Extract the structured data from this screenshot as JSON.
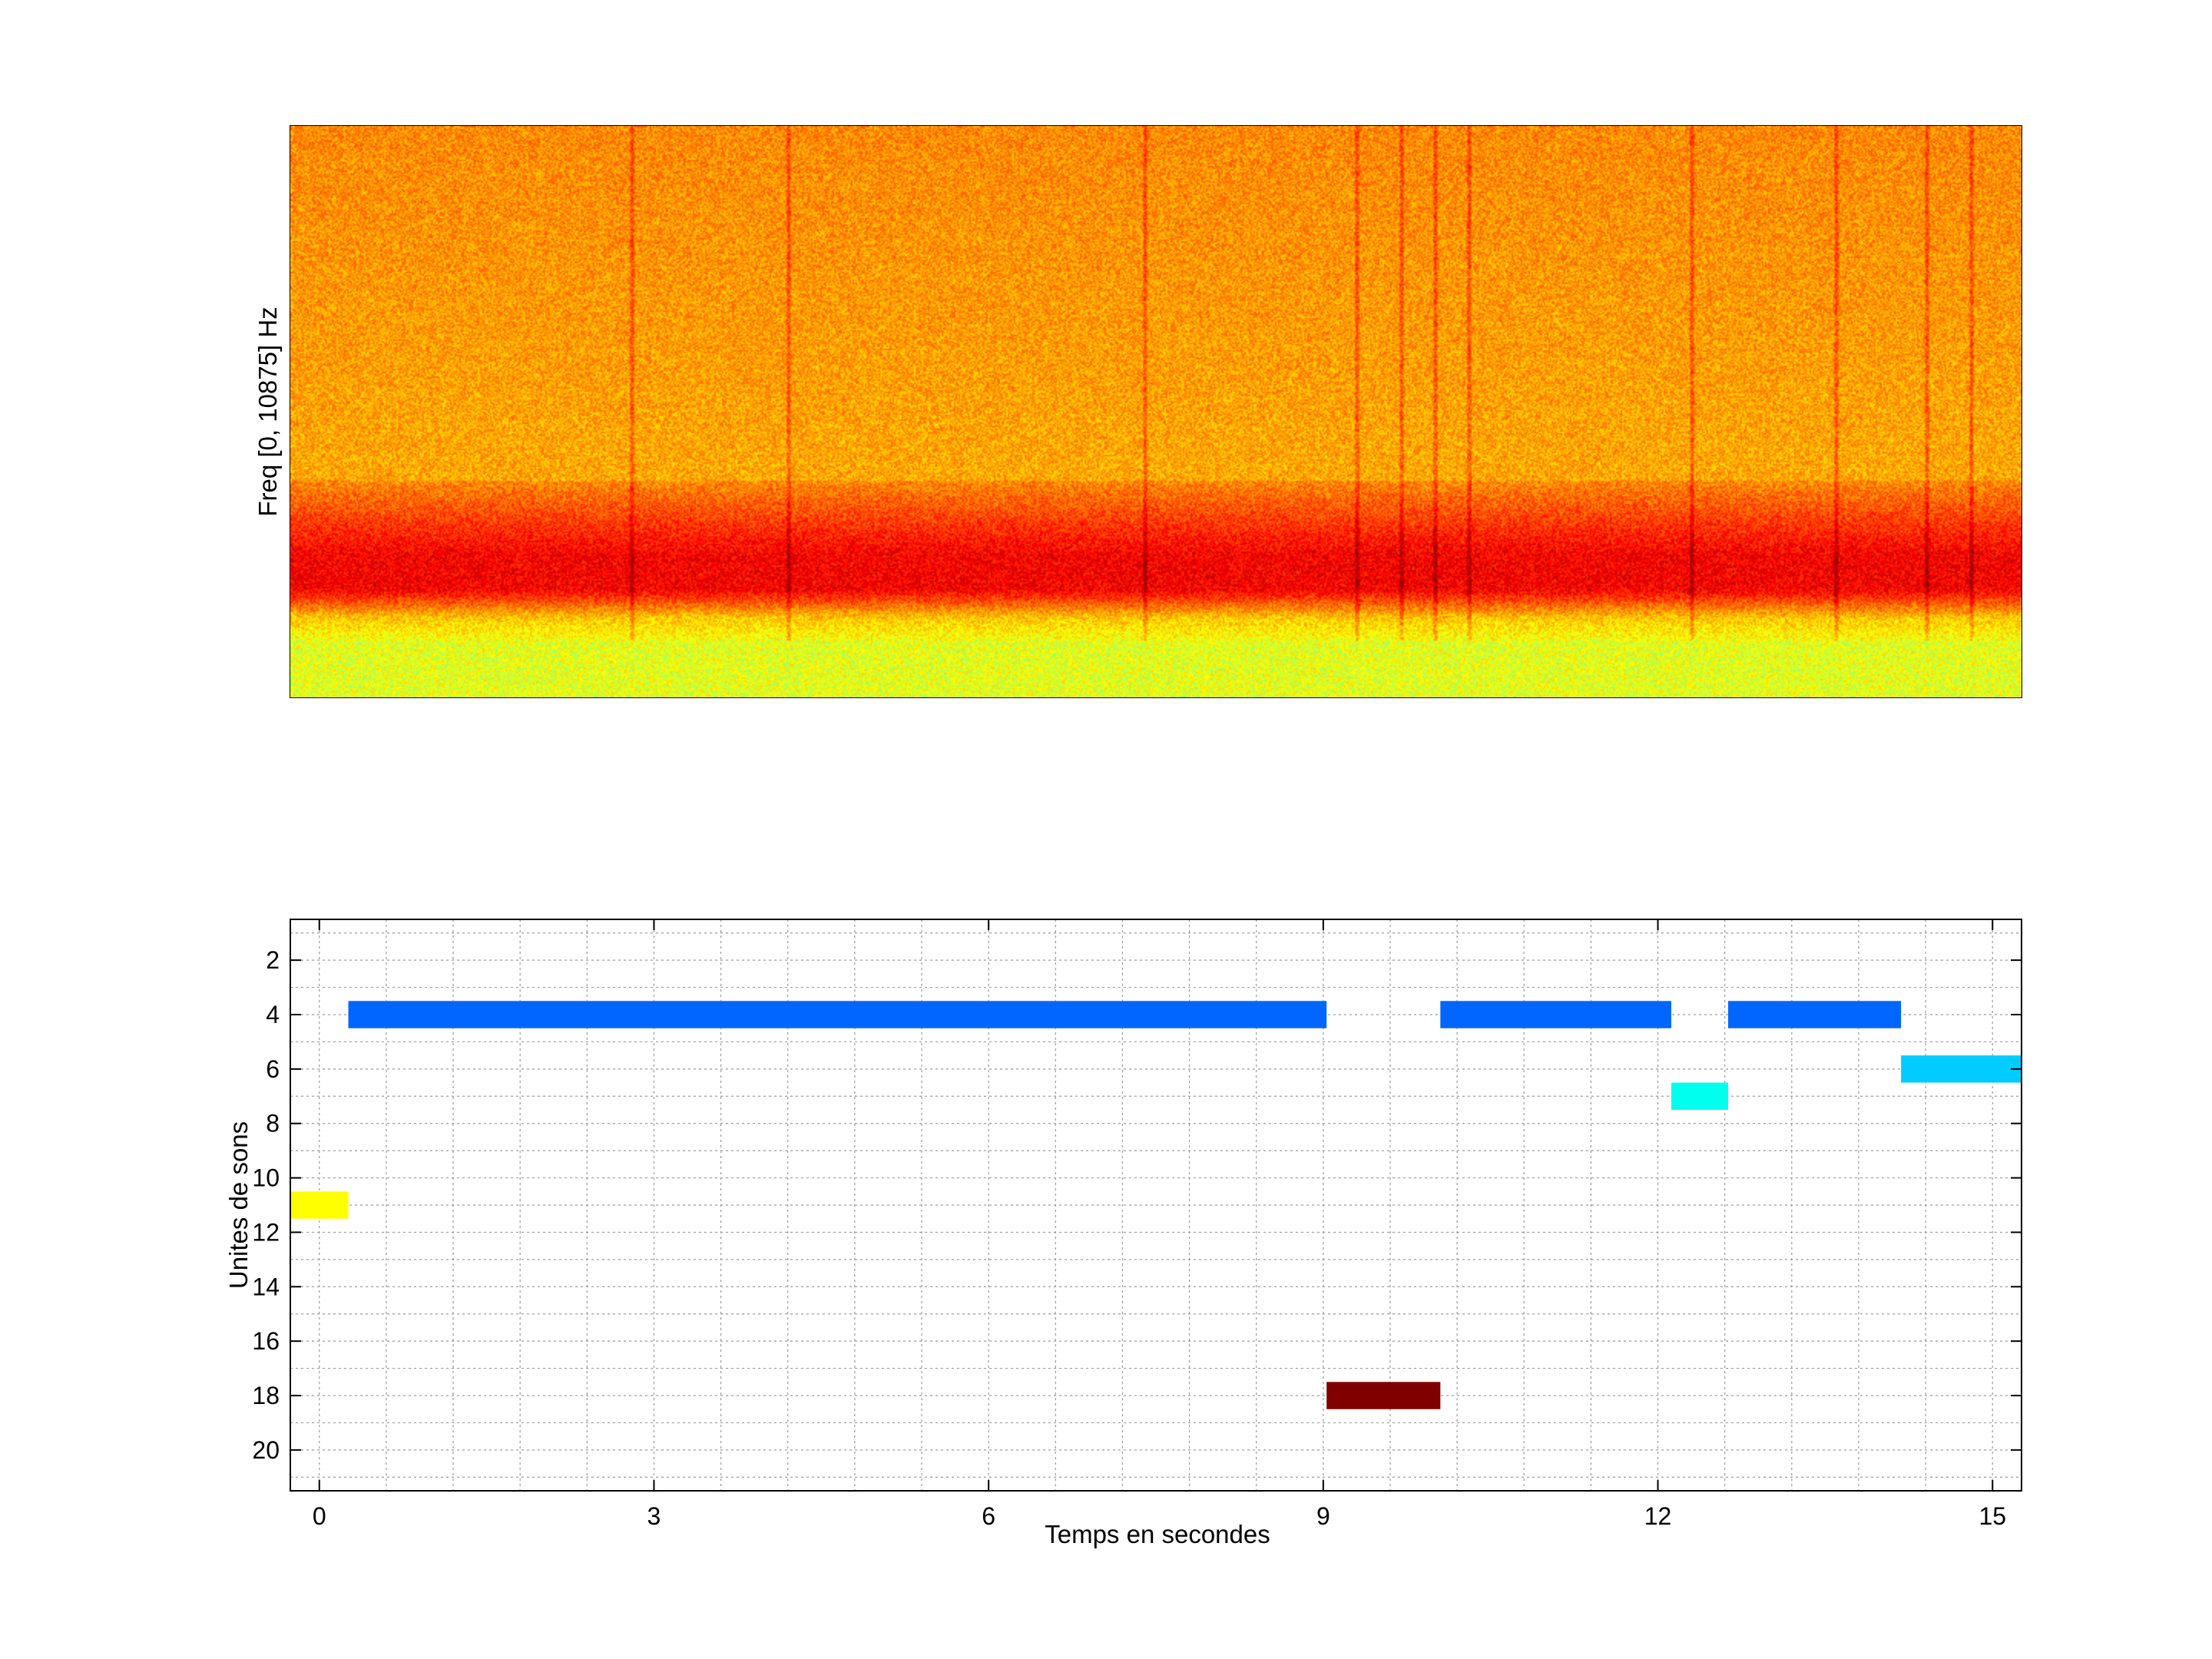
{
  "chart_data": [
    {
      "type": "heatmap",
      "title": "",
      "xlabel": "",
      "ylabel": "Freq [0, 10875] Hz",
      "colormap": "jet",
      "grid": false,
      "xticks": [
        0,
        3,
        6,
        9,
        12,
        15
      ],
      "xlim": [
        -0.26,
        15.26
      ],
      "bands": [
        {
          "name": "low-frequency energy",
          "color": "#f1ff1a"
        },
        {
          "name": "dominant band",
          "color": "#e62200"
        },
        {
          "name": "upper spectrum",
          "color": "#ff9b00"
        }
      ],
      "transient_times": [
        2.8,
        4.2,
        7.4,
        9.3,
        9.7,
        10.0,
        10.3,
        12.3,
        13.6,
        14.4,
        14.8
      ]
    },
    {
      "type": "bar",
      "orientation": "horizontal-segments",
      "title": "",
      "xlabel": "Temps en secondes",
      "ylabel": "Unites de sons",
      "xlim": [
        -0.26,
        15.26
      ],
      "ylim": [
        21.5,
        0.5
      ],
      "xticks": [
        0,
        3,
        6,
        9,
        12,
        15
      ],
      "yticks": [
        2,
        4,
        6,
        8,
        10,
        12,
        14,
        16,
        18,
        20
      ],
      "grid": true,
      "segments": [
        {
          "unit": 11,
          "start": -0.26,
          "end": 0.26,
          "color": "#ffff00"
        },
        {
          "unit": 4,
          "start": 0.26,
          "end": 9.03,
          "color": "#0066ff"
        },
        {
          "unit": 18,
          "start": 9.03,
          "end": 10.05,
          "color": "#800000"
        },
        {
          "unit": 4,
          "start": 10.05,
          "end": 12.12,
          "color": "#0066ff"
        },
        {
          "unit": 7,
          "start": 12.12,
          "end": 12.63,
          "color": "#00ffee"
        },
        {
          "unit": 4,
          "start": 12.63,
          "end": 14.18,
          "color": "#0066ff"
        },
        {
          "unit": 6,
          "start": 14.18,
          "end": 15.26,
          "color": "#00ccff"
        }
      ]
    }
  ]
}
